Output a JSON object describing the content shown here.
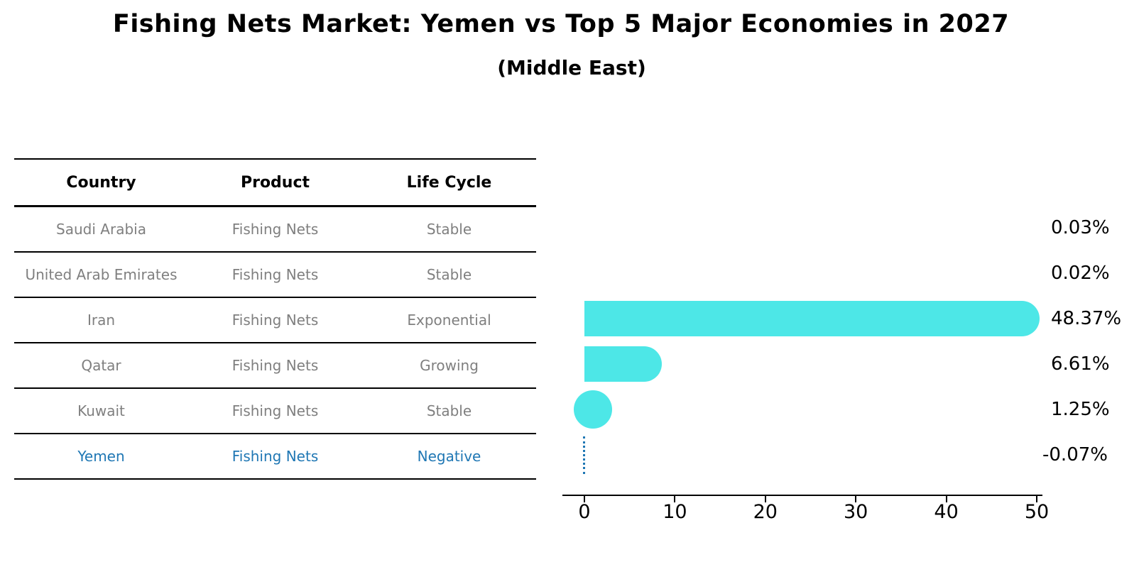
{
  "title": "Fishing Nets Market: Yemen vs Top 5 Major Economies in 2027",
  "subtitle": "(Middle East)",
  "table": {
    "headers": [
      "Country",
      "Product",
      "Life Cycle"
    ],
    "rows": [
      {
        "country": "Saudi Arabia",
        "product": "Fishing Nets",
        "life_cycle": "Stable",
        "highlight": false
      },
      {
        "country": "United Arab Emirates",
        "product": "Fishing Nets",
        "life_cycle": "Stable",
        "highlight": false
      },
      {
        "country": "Iran",
        "product": "Fishing Nets",
        "life_cycle": "Exponential",
        "highlight": false
      },
      {
        "country": "Qatar",
        "product": "Fishing Nets",
        "life_cycle": "Growing",
        "highlight": false
      },
      {
        "country": "Kuwait",
        "product": "Fishing Nets",
        "life_cycle": "Stable",
        "highlight": false
      },
      {
        "country": "Yemen",
        "product": "Fishing Nets",
        "life_cycle": "Negative",
        "highlight": true
      }
    ]
  },
  "chart_data": {
    "type": "bar",
    "orientation": "horizontal",
    "categories": [
      "Saudi Arabia",
      "United Arab Emirates",
      "Iran",
      "Qatar",
      "Kuwait",
      "Yemen"
    ],
    "values": [
      0.03,
      0.02,
      48.37,
      6.61,
      1.25,
      -0.07
    ],
    "value_labels": [
      "0.03%",
      "0.02%",
      "48.37%",
      "6.61%",
      "1.25%",
      "-0.07%"
    ],
    "xticks": [
      0,
      10,
      20,
      30,
      40,
      50
    ],
    "xlim": [
      0,
      50
    ],
    "grid": false,
    "legend": false,
    "bar_color": "#4DE7E7",
    "negative_marker_color": "#1f77b4",
    "highlight_color": "#1f77b4",
    "row_text_color": "#7f7f7f",
    "axis_color": "#000000"
  }
}
